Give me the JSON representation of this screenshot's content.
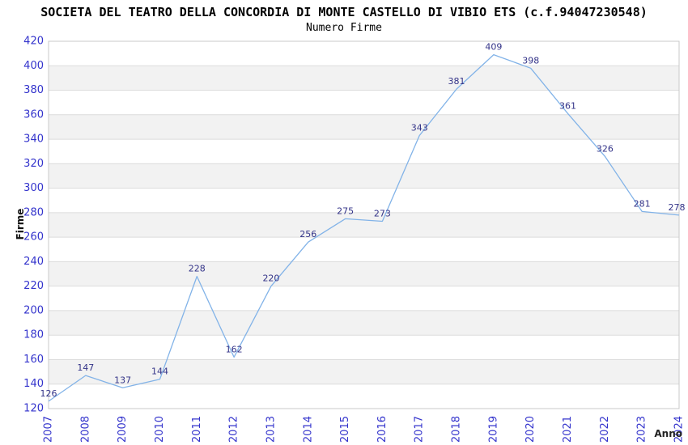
{
  "chart_data": {
    "type": "line",
    "title": "SOCIETA DEL TEATRO DELLA CONCORDIA DI MONTE CASTELLO DI VIBIO ETS (c.f.94047230548)",
    "subtitle": "Numero Firme",
    "xlabel": "Anno",
    "ylabel": "Firme",
    "categories": [
      "2007",
      "2008",
      "2009",
      "2010",
      "2011",
      "2012",
      "2013",
      "2014",
      "2015",
      "2016",
      "2017",
      "2018",
      "2019",
      "2020",
      "2021",
      "2022",
      "2023",
      "2024"
    ],
    "values": [
      126,
      147,
      137,
      144,
      228,
      162,
      220,
      256,
      275,
      273,
      343,
      381,
      409,
      398,
      361,
      326,
      281,
      278
    ],
    "ylim": [
      120,
      420
    ],
    "ytick_step": 20,
    "grid": true,
    "legend": "none",
    "colors": {
      "line": "#82b3e8",
      "tick_label": "#3333cc",
      "value_label": "#333388",
      "band": "#f2f2f2",
      "grid_line": "#dcdcdc",
      "plot_border": "#c9c9c9",
      "title": "#000000"
    }
  }
}
